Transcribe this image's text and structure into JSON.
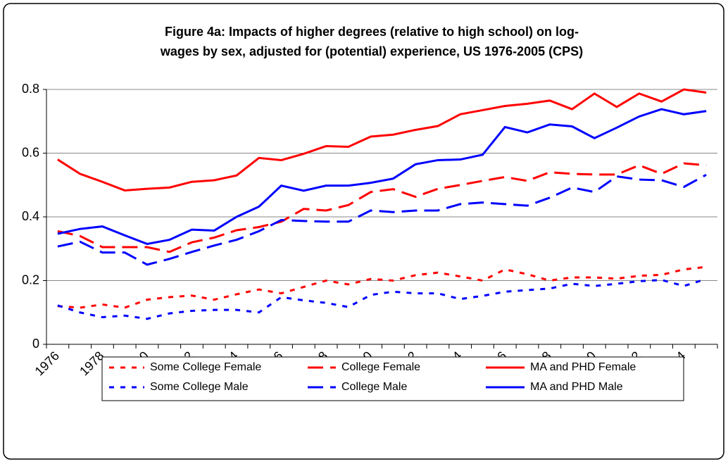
{
  "chart_data": {
    "type": "line",
    "title": [
      "Figure 4a: Impacts of higher degrees (relative to high school) on log-",
      "wages by sex, adjusted for (potential) experience, US 1976-2005 (CPS)"
    ],
    "categories": [
      "1976",
      null,
      "1978",
      null,
      "1980",
      null,
      "1982",
      null,
      "1984",
      null,
      "1986",
      null,
      "1988",
      null,
      "1990",
      null,
      "1992",
      null,
      "1994",
      null,
      "1996",
      null,
      "1998",
      null,
      "2000",
      null,
      "2002",
      null,
      "2004",
      null
    ],
    "series": [
      {
        "name": "Some College Female",
        "color": "#ff0000",
        "style": "dot",
        "values": [
          0.12,
          0.115,
          0.125,
          0.115,
          0.14,
          0.148,
          0.153,
          0.14,
          0.157,
          0.172,
          0.16,
          0.18,
          0.2,
          0.188,
          0.205,
          0.2,
          0.217,
          0.225,
          0.213,
          0.2,
          0.235,
          0.22,
          0.2,
          0.21,
          0.21,
          0.206,
          0.215,
          0.218,
          0.235,
          0.243
        ]
      },
      {
        "name": "College Female",
        "color": "#ff0000",
        "style": "dash",
        "values": [
          0.355,
          0.34,
          0.305,
          0.305,
          0.305,
          0.29,
          0.32,
          0.335,
          0.358,
          0.368,
          0.385,
          0.425,
          0.42,
          0.437,
          0.478,
          0.487,
          0.463,
          0.488,
          0.5,
          0.513,
          0.525,
          0.513,
          0.54,
          0.535,
          0.533,
          0.533,
          0.562,
          0.535,
          0.568,
          0.562
        ]
      },
      {
        "name": "MA and PHD Female",
        "color": "#ff0000",
        "style": "solid",
        "values": [
          0.58,
          0.535,
          0.51,
          0.483,
          0.488,
          0.492,
          0.51,
          0.515,
          0.53,
          0.585,
          0.578,
          0.598,
          0.622,
          0.62,
          0.652,
          0.658,
          0.673,
          0.685,
          0.722,
          0.735,
          0.748,
          0.755,
          0.765,
          0.738,
          0.787,
          0.745,
          0.787,
          0.762,
          0.8,
          0.79
        ]
      },
      {
        "name": "Some College Male",
        "color": "#0000ff",
        "style": "dot",
        "values": [
          0.122,
          0.1,
          0.085,
          0.09,
          0.08,
          0.097,
          0.105,
          0.108,
          0.108,
          0.1,
          0.148,
          0.138,
          0.13,
          0.117,
          0.155,
          0.165,
          0.16,
          0.16,
          0.142,
          0.152,
          0.165,
          0.17,
          0.175,
          0.19,
          0.183,
          0.19,
          0.198,
          0.202,
          0.183,
          0.205
        ]
      },
      {
        "name": "College Male",
        "color": "#0000ff",
        "style": "dash",
        "values": [
          0.307,
          0.322,
          0.288,
          0.288,
          0.25,
          0.268,
          0.29,
          0.31,
          0.328,
          0.355,
          0.39,
          0.387,
          0.385,
          0.385,
          0.42,
          0.415,
          0.42,
          0.42,
          0.44,
          0.445,
          0.44,
          0.435,
          0.46,
          0.492,
          0.478,
          0.527,
          0.517,
          0.515,
          0.494,
          0.532
        ]
      },
      {
        "name": "MA and PHD Male",
        "color": "#0000ff",
        "style": "solid",
        "values": [
          0.347,
          0.362,
          0.37,
          0.342,
          0.315,
          0.328,
          0.36,
          0.357,
          0.4,
          0.432,
          0.498,
          0.482,
          0.498,
          0.498,
          0.507,
          0.52,
          0.565,
          0.578,
          0.58,
          0.595,
          0.682,
          0.665,
          0.69,
          0.684,
          0.647,
          0.68,
          0.715,
          0.738,
          0.722,
          0.732
        ]
      }
    ],
    "ylim": [
      0,
      0.8
    ],
    "yticks": [
      0,
      0.2,
      0.4,
      0.6,
      0.8
    ],
    "grid": true,
    "legend": "bottom"
  }
}
